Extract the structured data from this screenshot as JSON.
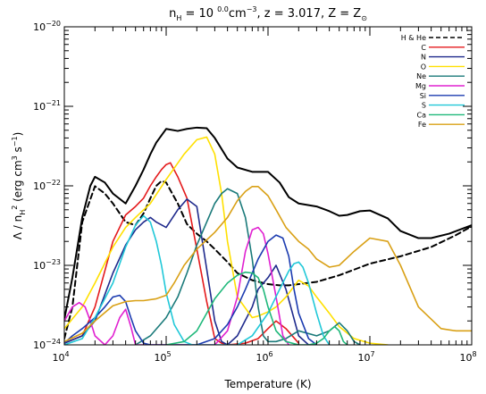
{
  "chart_data": {
    "type": "line",
    "title": {
      "parts": [
        {
          "t": "n",
          "s": "n"
        },
        {
          "t": "H",
          "s": "sub"
        },
        {
          "t": " = 10 ",
          "s": "n"
        },
        {
          "t": "0.0",
          "s": "sup"
        },
        {
          "t": "cm",
          "s": "n"
        },
        {
          "t": "−3",
          "s": "sup"
        },
        {
          "t": ", z = 3.017, Z = Z",
          "s": "n"
        },
        {
          "t": "⊙",
          "s": "sub"
        }
      ]
    },
    "xlabel": "Temperature (K)",
    "ylabel": {
      "parts": [
        {
          "t": "Λ / n",
          "s": "n"
        },
        {
          "t": "H",
          "s": "sub"
        },
        {
          "t": "2",
          "s": "sup"
        },
        {
          "t": " (erg cm",
          "s": "n"
        },
        {
          "t": "3",
          "s": "sup"
        },
        {
          "t": " s",
          "s": "n"
        },
        {
          "t": "−1",
          "s": "sup"
        },
        {
          "t": ")",
          "s": "n"
        }
      ]
    },
    "xscale": "log",
    "yscale": "log",
    "xlim": [
      10000,
      100000000
    ],
    "ylim": [
      1e-24,
      1e-20
    ],
    "x_ticks": [
      {
        "base": "10",
        "exp": "4"
      },
      {
        "base": "10",
        "exp": "5"
      },
      {
        "base": "10",
        "exp": "6"
      },
      {
        "base": "10",
        "exp": "7"
      },
      {
        "base": "10",
        "exp": "8"
      }
    ],
    "y_ticks": [
      {
        "base": "10",
        "exp": "−24"
      },
      {
        "base": "10",
        "exp": "−23"
      },
      {
        "base": "10",
        "exp": "−22"
      },
      {
        "base": "10",
        "exp": "−21"
      },
      {
        "base": "10",
        "exp": "−20"
      }
    ],
    "legend_position": "top-right",
    "series": [
      {
        "name": "",
        "color": "#000000",
        "dash": false,
        "x": [
          10000,
          12000,
          15000,
          18000,
          20000,
          25000,
          30000,
          40000,
          50000,
          60000,
          70000,
          80000,
          100000,
          130000,
          160000,
          200000,
          250000,
          300000,
          400000,
          500000,
          700000,
          1000000,
          1300000,
          1600000,
          2000000,
          3000000,
          4000000,
          5000000,
          6000000,
          8000000,
          10000000,
          15000000,
          20000000,
          30000000,
          40000000,
          60000000,
          100000000
        ],
        "y": [
          2.1e-24,
          7e-24,
          4e-23,
          1e-22,
          1.3e-22,
          1.1e-22,
          8e-23,
          6e-23,
          1e-22,
          1.6e-22,
          2.5e-22,
          3.5e-22,
          5.2e-22,
          4.9e-22,
          5.2e-22,
          5.4e-22,
          5.3e-22,
          4e-22,
          2.2e-22,
          1.7e-22,
          1.5e-22,
          1.5e-22,
          1.1e-22,
          7.2e-23,
          6e-23,
          5.5e-23,
          4.8e-23,
          4.2e-23,
          4.3e-23,
          4.8e-23,
          4.9e-23,
          3.9e-23,
          2.7e-23,
          2.2e-23,
          2.2e-23,
          2.5e-23,
          3.2e-23
        ]
      },
      {
        "name": "H & He",
        "color": "#000000",
        "dash": true,
        "x": [
          10000,
          12000,
          15000,
          20000,
          25000,
          30000,
          40000,
          50000,
          60000,
          70000,
          80000,
          90000,
          100000,
          130000,
          160000,
          200000,
          250000,
          300000,
          400000,
          500000,
          700000,
          1000000,
          1300000,
          1600000,
          2000000,
          3000000,
          5000000,
          10000000,
          20000000,
          40000000,
          70000000,
          100000000
        ],
        "y": [
          1.2e-24,
          3e-24,
          3.5e-23,
          9.9e-23,
          8e-23,
          6e-23,
          3.5e-23,
          3.2e-23,
          4.5e-23,
          7e-23,
          1e-22,
          1.15e-22,
          1.1e-22,
          6e-23,
          3.3e-23,
          2.5e-23,
          2e-23,
          1.6e-23,
          1.1e-23,
          8e-24,
          6.5e-24,
          5.8e-24,
          5.6e-24,
          5.6e-24,
          5.8e-24,
          6.2e-24,
          7.5e-24,
          1.05e-23,
          1.3e-23,
          1.7e-23,
          2.4e-23,
          3.1e-23
        ]
      },
      {
        "name": "C",
        "color": "#e41a1c",
        "dash": false,
        "x": [
          10000,
          15000,
          20000,
          30000,
          40000,
          50000,
          60000,
          70000,
          80000,
          90000,
          100000,
          110000,
          130000,
          160000,
          200000,
          250000,
          300000,
          350000,
          400000,
          600000,
          800000,
          1000000,
          1200000,
          1500000,
          2000000
        ],
        "y": [
          1.05e-24,
          1.3e-24,
          3e-24,
          2e-23,
          4.3e-23,
          5.5e-23,
          7e-23,
          1e-22,
          1.3e-22,
          1.6e-22,
          1.85e-22,
          1.95e-22,
          1.3e-22,
          7e-23,
          1.6e-23,
          3.5e-24,
          1.2e-24,
          1.05e-24,
          1e-24,
          1.05e-24,
          1.2e-24,
          1.6e-24,
          2e-24,
          1.6e-24,
          1.05e-24
        ]
      },
      {
        "name": "N",
        "color": "#1f2a8c",
        "dash": false,
        "x": [
          10000,
          15000,
          20000,
          30000,
          40000,
          50000,
          60000,
          70000,
          80000,
          100000,
          130000,
          160000,
          200000,
          250000,
          300000,
          350000,
          400000,
          500000,
          700000,
          800000,
          1000000,
          1200000,
          1500000,
          2000000,
          2500000
        ],
        "y": [
          1.05e-24,
          1.3e-24,
          2e-24,
          8e-24,
          1.8e-23,
          2.8e-23,
          3.5e-23,
          4e-23,
          3.5e-23,
          3e-23,
          5e-23,
          6.8e-23,
          5.5e-23,
          9e-24,
          2e-24,
          1.1e-24,
          1e-24,
          1.3e-24,
          3e-24,
          5e-24,
          7e-24,
          1e-23,
          5e-24,
          1.3e-24,
          1e-24
        ]
      },
      {
        "name": "O",
        "color": "#ffe000",
        "dash": false,
        "x": [
          10000,
          15000,
          20000,
          30000,
          40000,
          50000,
          70000,
          100000,
          150000,
          200000,
          250000,
          300000,
          350000,
          400000,
          500000,
          700000,
          800000,
          1000000,
          1200000,
          1500000,
          2000000,
          2500000,
          3000000,
          4000000,
          5000000,
          7000000,
          10000000,
          15000000
        ],
        "y": [
          1.6e-24,
          3e-24,
          6e-24,
          1.7e-23,
          3e-23,
          4e-23,
          6e-23,
          1.2e-22,
          2.5e-22,
          3.8e-22,
          4.1e-22,
          2.5e-22,
          8e-23,
          2e-23,
          4e-24,
          2.2e-24,
          2.3e-24,
          2.6e-24,
          3e-24,
          4e-24,
          6.5e-24,
          5.5e-24,
          4e-24,
          2.5e-24,
          1.7e-24,
          1.2e-24,
          1.05e-24,
          1e-24
        ]
      },
      {
        "name": "Ne",
        "color": "#1a7a7a",
        "dash": false,
        "x": [
          50000,
          70000,
          100000,
          130000,
          160000,
          200000,
          250000,
          300000,
          350000,
          400000,
          500000,
          600000,
          700000,
          800000,
          900000,
          1000000,
          1200000,
          1500000,
          2000000,
          3000000,
          4000000,
          5000000,
          6000000,
          7000000,
          8000000
        ],
        "y": [
          1e-24,
          1.3e-24,
          2.2e-24,
          4e-24,
          8e-24,
          1.8e-23,
          3.5e-23,
          6e-23,
          8e-23,
          9.2e-23,
          8e-23,
          4e-23,
          1.2e-23,
          3e-24,
          1.3e-24,
          1.1e-24,
          1.1e-24,
          1.2e-24,
          1.5e-24,
          1.3e-24,
          1.5e-24,
          1.9e-24,
          1.5e-24,
          1.1e-24,
          1e-24
        ]
      },
      {
        "name": "Mg",
        "color": "#e020d0",
        "dash": false,
        "x": [
          10000,
          12000,
          14000,
          16000,
          18000,
          20000,
          25000,
          30000,
          35000,
          40000,
          45000,
          50000,
          300000,
          400000,
          500000,
          600000,
          700000,
          800000,
          900000,
          1000000,
          1200000,
          1400000,
          1600000
        ],
        "y": [
          2e-24,
          3e-24,
          3.4e-24,
          3e-24,
          2e-24,
          1.3e-24,
          1e-24,
          1.3e-24,
          2.2e-24,
          2.8e-24,
          1.7e-24,
          1e-24,
          1e-24,
          1.5e-24,
          4e-24,
          1.5e-23,
          2.8e-23,
          3e-23,
          2.5e-23,
          1.4e-23,
          4e-24,
          1.3e-24,
          1e-24
        ]
      },
      {
        "name": "Si",
        "color": "#1b3bb0",
        "dash": false,
        "x": [
          10000,
          12000,
          15000,
          20000,
          25000,
          30000,
          35000,
          40000,
          45000,
          50000,
          60000,
          70000,
          80000,
          100000,
          150000,
          200000,
          300000,
          400000,
          500000,
          600000,
          700000,
          800000,
          1000000,
          1200000,
          1400000,
          1600000,
          1800000,
          2000000,
          2500000,
          3000000
        ],
        "y": [
          1.05e-24,
          1.3e-24,
          1.6e-24,
          2.2e-24,
          3e-24,
          4e-24,
          4.2e-24,
          3.5e-24,
          2.2e-24,
          1.5e-24,
          1.05e-24,
          1e-24,
          1e-24,
          1e-24,
          1e-24,
          1e-24,
          1.2e-24,
          1.8e-24,
          3e-24,
          5e-24,
          8e-24,
          1.2e-23,
          2e-23,
          2.4e-23,
          2.2e-23,
          1.3e-23,
          5e-24,
          2.5e-24,
          1.2e-24,
          1e-24
        ]
      },
      {
        "name": "S",
        "color": "#20c8d8",
        "dash": false,
        "x": [
          10000,
          15000,
          20000,
          30000,
          40000,
          50000,
          60000,
          70000,
          80000,
          90000,
          100000,
          120000,
          150000,
          180000,
          200000,
          300000,
          500000,
          700000,
          1000000,
          1300000,
          1600000,
          1800000,
          2000000,
          2200000,
          2500000,
          3000000,
          3500000,
          4000000
        ],
        "y": [
          1e-24,
          1.2e-24,
          2.2e-24,
          6e-24,
          1.7e-23,
          3.2e-23,
          4.2e-23,
          3.5e-23,
          2e-23,
          1e-23,
          4.5e-24,
          1.8e-24,
          1.1e-24,
          1e-24,
          1e-24,
          1e-24,
          1e-24,
          1.3e-24,
          2.5e-24,
          5e-24,
          8.5e-24,
          1.05e-23,
          1.1e-23,
          9.5e-24,
          6e-24,
          2.5e-24,
          1.3e-24,
          1e-24
        ]
      },
      {
        "name": "Ca",
        "color": "#1fb87a",
        "dash": false,
        "x": [
          100000,
          150000,
          200000,
          250000,
          300000,
          400000,
          500000,
          600000,
          700000,
          800000,
          900000,
          1000000,
          1200000,
          1500000,
          2000000,
          2500000,
          3000000,
          3500000,
          4000000,
          4500000,
          5000000,
          5500000,
          6000000
        ],
        "y": [
          1e-24,
          1.1e-24,
          1.5e-24,
          2.5e-24,
          3.8e-24,
          6e-24,
          7.5e-24,
          8.2e-24,
          8e-24,
          7e-24,
          5e-24,
          3e-24,
          1.5e-24,
          1.1e-24,
          1e-24,
          1e-24,
          1.05e-24,
          1.2e-24,
          1.5e-24,
          1.7e-24,
          1.5e-24,
          1.1e-24,
          1e-24
        ]
      },
      {
        "name": "Fe",
        "color": "#d9a015",
        "dash": false,
        "x": [
          10000,
          15000,
          20000,
          30000,
          40000,
          50000,
          60000,
          80000,
          100000,
          120000,
          150000,
          200000,
          300000,
          400000,
          500000,
          600000,
          700000,
          800000,
          1000000,
          1200000,
          1500000,
          2000000,
          2500000,
          3000000,
          4000000,
          5000000,
          7000000,
          10000000,
          15000000,
          20000000,
          30000000,
          50000000,
          70000000,
          100000000
        ],
        "y": [
          1.1e-24,
          1.4e-24,
          2e-24,
          3.1e-24,
          3.5e-24,
          3.6e-24,
          3.6e-24,
          3.8e-24,
          4.2e-24,
          6e-24,
          1e-23,
          1.6e-23,
          2.6e-23,
          4e-23,
          6.5e-23,
          8.5e-23,
          9.8e-23,
          9.8e-23,
          7.5e-23,
          5e-23,
          3e-23,
          2e-23,
          1.6e-23,
          1.2e-23,
          9.5e-24,
          1e-23,
          1.5e-23,
          2.2e-23,
          2e-23,
          1e-23,
          3e-24,
          1.6e-24,
          1.5e-24,
          1.5e-24
        ]
      }
    ]
  }
}
